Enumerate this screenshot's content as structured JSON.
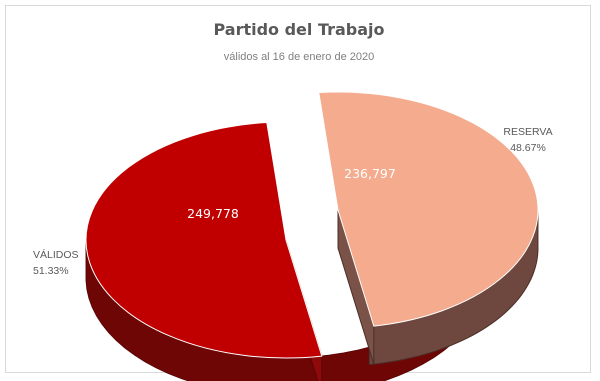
{
  "chart_data": {
    "type": "pie",
    "title": "Partido del Trabajo",
    "subtitle": "válidos al 16 de enero de 2020",
    "slices": [
      {
        "label": "VÁLIDOS",
        "value": 249778,
        "value_label": "249,778",
        "percent": "51.33%",
        "color": "#c00000",
        "side_color": "#6e0606",
        "exploded": false
      },
      {
        "label": "RESERVA",
        "value": 236797,
        "value_label": "236,797",
        "percent": "48.67%",
        "color": "#f4ab8e",
        "side_color": "#6e473e",
        "exploded": true
      }
    ],
    "style": "3d-pie"
  }
}
